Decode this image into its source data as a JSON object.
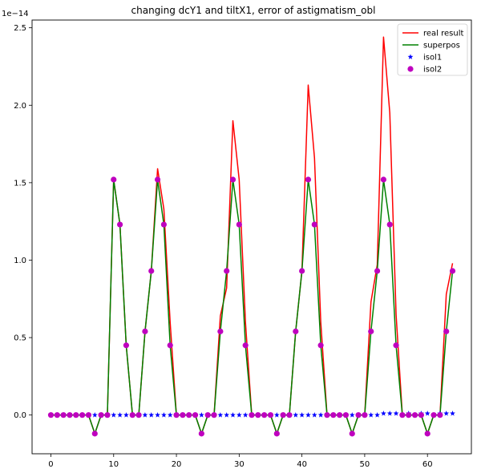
{
  "chart_data": {
    "type": "line",
    "title": "changing dcY1 and tiltX1, error of astigmatism_obl",
    "xlabel": "",
    "ylabel": "",
    "y_scale_label": "1e−14",
    "xlim": [
      -3,
      67
    ],
    "ylim": [
      -0.25,
      2.55
    ],
    "xticks": [
      0,
      10,
      20,
      30,
      40,
      50,
      60
    ],
    "yticks": [
      0.0,
      0.5,
      1.0,
      1.5,
      2.0,
      2.5
    ],
    "ytick_labels": [
      "0.0",
      "0.5",
      "1.0",
      "1.5",
      "2.0",
      "2.5"
    ],
    "legend_position": "top-right",
    "grid": false,
    "x": [
      0,
      1,
      2,
      3,
      4,
      5,
      6,
      7,
      8,
      9,
      10,
      11,
      12,
      13,
      14,
      15,
      16,
      17,
      18,
      19,
      20,
      21,
      22,
      23,
      24,
      25,
      26,
      27,
      28,
      29,
      30,
      31,
      32,
      33,
      34,
      35,
      36,
      37,
      38,
      39,
      40,
      41,
      42,
      43,
      44,
      45,
      46,
      47,
      48,
      49,
      50,
      51,
      52,
      53,
      54,
      55,
      56,
      57,
      58,
      59,
      60,
      61,
      62,
      63,
      64
    ],
    "series": [
      {
        "name": "real result",
        "style": "line",
        "color": "#ff0000",
        "values": [
          0,
          0,
          0,
          0,
          0,
          0,
          0,
          -0.12,
          0,
          0,
          1.52,
          1.23,
          0.45,
          0,
          0,
          0.54,
          0.93,
          1.59,
          1.33,
          0.6,
          0,
          0,
          0,
          0,
          -0.12,
          0,
          0,
          0.64,
          0.82,
          1.9,
          1.52,
          0.6,
          0,
          0,
          0,
          0,
          -0.12,
          0,
          0,
          0.54,
          0.93,
          2.13,
          1.66,
          0.6,
          0,
          0,
          0,
          0,
          -0.12,
          0,
          0,
          0.73,
          0.97,
          2.44,
          1.95,
          0.65,
          0,
          0,
          0,
          0,
          -0.12,
          0,
          0,
          0.78,
          0.98
        ]
      },
      {
        "name": "superpos",
        "style": "line",
        "color": "#008000",
        "values": [
          0,
          0,
          0,
          0,
          0,
          0,
          0,
          -0.12,
          0,
          0,
          1.52,
          1.23,
          0.45,
          0,
          0,
          0.54,
          0.93,
          1.52,
          1.23,
          0.45,
          0,
          0,
          0,
          0,
          -0.12,
          0,
          0,
          0.54,
          0.93,
          1.52,
          1.23,
          0.45,
          0,
          0,
          0,
          0,
          -0.12,
          0,
          0,
          0.54,
          0.93,
          1.52,
          1.23,
          0.45,
          0,
          0,
          0,
          0,
          -0.12,
          0,
          0,
          0.54,
          0.93,
          1.52,
          1.23,
          0.45,
          0,
          0,
          0,
          0,
          -0.12,
          0,
          0,
          0.54,
          0.93
        ]
      },
      {
        "name": "isol1",
        "style": "star",
        "color": "#0000ff",
        "values": [
          0,
          0,
          0,
          0,
          0,
          0,
          0,
          0,
          0,
          0,
          0,
          0,
          0,
          0,
          0,
          0,
          0,
          0,
          0,
          0,
          0,
          0,
          0,
          0,
          0,
          0,
          0,
          0,
          0,
          0,
          0,
          0,
          0,
          0,
          0,
          0,
          0,
          0,
          0,
          0,
          0,
          0,
          0,
          0,
          0,
          0,
          0,
          0,
          0,
          0,
          0,
          0,
          0,
          0.01,
          0.01,
          0.01,
          0,
          0.01,
          0,
          0.01,
          0.01,
          0,
          0.01,
          0.01,
          0.01
        ]
      },
      {
        "name": "isol2",
        "style": "circle",
        "color": "#bf00bf",
        "values": [
          0,
          0,
          0,
          0,
          0,
          0,
          0,
          -0.12,
          0,
          0,
          1.52,
          1.23,
          0.45,
          0,
          0,
          0.54,
          0.93,
          1.52,
          1.23,
          0.45,
          0,
          0,
          0,
          0,
          -0.12,
          0,
          0,
          0.54,
          0.93,
          1.52,
          1.23,
          0.45,
          0,
          0,
          0,
          0,
          -0.12,
          0,
          0,
          0.54,
          0.93,
          1.52,
          1.23,
          0.45,
          0,
          0,
          0,
          0,
          -0.12,
          0,
          0,
          0.54,
          0.93,
          1.52,
          1.23,
          0.45,
          0,
          0,
          0,
          0,
          -0.12,
          0,
          0,
          0.54,
          0.93
        ]
      }
    ]
  }
}
